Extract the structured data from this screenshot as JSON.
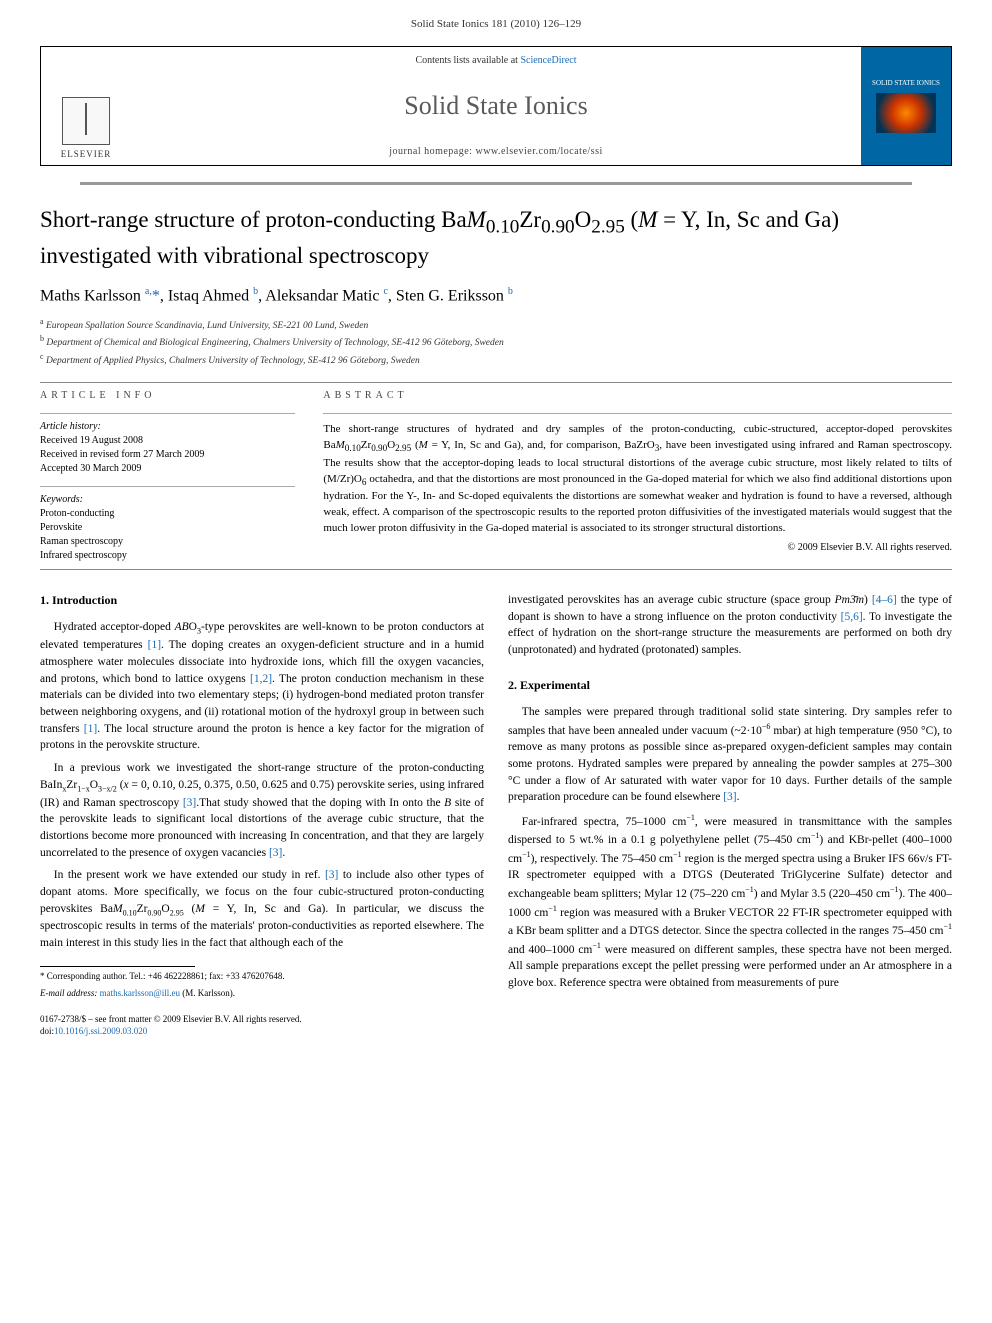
{
  "running_head": "Solid State Ionics 181 (2010) 126–129",
  "journal_box": {
    "contents_prefix": "Contents lists available at ",
    "contents_link": "ScienceDirect",
    "journal_name": "Solid State Ionics",
    "homepage_prefix": "journal homepage: ",
    "homepage_url": "www.elsevier.com/locate/ssi",
    "elsevier": "ELSEVIER",
    "cover_title": "SOLID STATE IONICS"
  },
  "title_html": "Short-range structure of proton-conducting Ba<em>M</em><sub>0.10</sub>Zr<sub>0.90</sub>O<sub>2.95</sub> (<em>M</em> = Y, In, Sc and Ga) investigated with vibrational spectroscopy",
  "authors_html": "Maths Karlsson <sup>a,</sup><span class='star'>*</span>, Istaq Ahmed <sup>b</sup>, Aleksandar Matic <sup>c</sup>, Sten G. Eriksson <sup>b</sup>",
  "affiliations": [
    "a  European Spallation Source Scandinavia, Lund University, SE-221 00 Lund, Sweden",
    "b  Department of Chemical and Biological Engineering, Chalmers University of Technology, SE-412 96 Göteborg, Sweden",
    "c  Department of Applied Physics, Chalmers University of Technology, SE-412 96 Göteborg, Sweden"
  ],
  "article_info": {
    "head": "ARTICLE INFO",
    "history_head": "Article history:",
    "history": [
      "Received 19 August 2008",
      "Received in revised form 27 March 2009",
      "Accepted 30 March 2009"
    ],
    "keywords_head": "Keywords:",
    "keywords": [
      "Proton-conducting",
      "Perovskite",
      "Raman spectroscopy",
      "Infrared spectroscopy"
    ]
  },
  "abstract": {
    "head": "ABSTRACT",
    "text_html": "The short-range structures of hydrated and dry samples of the proton-conducting, cubic-structured, acceptor-doped perovskites Ba<em>M</em><sub>0.10</sub>Zr<sub>0.90</sub>O<sub>2.95</sub> (<em>M</em> = Y, In, Sc and Ga), and, for comparison, BaZrO<sub>3</sub>, have been investigated using infrared and Raman spectroscopy. The results show that the acceptor-doping leads to local structural distortions of the average cubic structure, most likely related to tilts of (M/Zr)O<sub>6</sub> octahedra, and that the distortions are most pronounced in the Ga-doped material for which we also find additional distortions upon hydration. For the Y-, In- and Sc-doped equivalents the distortions are somewhat weaker and hydration is found to have a reversed, although weak, effect. A comparison of the spectroscopic results to the reported proton diffusivities of the investigated materials would suggest that the much lower proton diffusivity in the Ga-doped material is associated to its stronger structural distortions.",
    "copyright": "© 2009 Elsevier B.V. All rights reserved."
  },
  "body": {
    "s1_head": "1. Introduction",
    "s1_p1_html": "Hydrated acceptor-doped <em>AB</em>O<sub>3</sub>-type perovskites are well-known to be proton conductors at elevated temperatures <span class='cite'>[1]</span>. The doping creates an oxygen-deficient structure and in a humid atmosphere water molecules dissociate into hydroxide ions, which fill the oxygen vacancies, and protons, which bond to lattice oxygens <span class='cite'>[1,2]</span>. The proton conduction mechanism in these materials can be divided into two elementary steps; (i) hydrogen-bond mediated proton transfer between neighboring oxygens, and (ii) rotational motion of the hydroxyl group in between such transfers <span class='cite'>[1]</span>. The local structure around the proton is hence a key factor for the migration of protons in the perovskite structure.",
    "s1_p2_html": "In a previous work we investigated the short-range structure of the proton-conducting BaIn<sub>x</sub>Zr<sub>1−x</sub>O<sub>3−x/2</sub> (<em>x</em> = 0, 0.10, 0.25, 0.375, 0.50, 0.625 and 0.75) perovskite series, using infrared (IR) and Raman spectroscopy <span class='cite'>[3]</span>.That study showed that the doping with In onto the <em>B</em> site of the perovskite leads to significant local distortions of the average cubic structure, that the distortions become more pronounced with increasing In concentration, and that they are largely uncorrelated to the presence of oxygen vacancies <span class='cite'>[3]</span>.",
    "s1_p3_html": "In the present work we have extended our study in ref. <span class='cite'>[3]</span> to include also other types of dopant atoms. More specifically, we focus on the four cubic-structured proton-conducting perovskites Ba<em>M</em><sub>0.10</sub>Zr<sub>0.90</sub>O<sub>2.95</sub> (<em>M</em> = Y, In, Sc and Ga). In particular, we discuss the spectroscopic results in terms of the materials' proton-conductivities as reported elsewhere. The main interest in this study lies in the fact that although each of the",
    "col2_cont_html": "investigated perovskites has an average cubic structure (space group <em>Pm3̄m</em>) <span class='cite'>[4–6]</span> the type of dopant is shown to have a strong influence on the proton conductivity <span class='cite'>[5,6]</span>. To investigate the effect of hydration on the short-range structure the measurements are performed on both dry (unprotonated) and hydrated (protonated) samples.",
    "s2_head": "2. Experimental",
    "s2_p1_html": "The samples were prepared through traditional solid state sintering. Dry samples refer to samples that have been annealed under vacuum (~2·10<sup>−6</sup> mbar) at high temperature (950 °C), to remove as many protons as possible since as-prepared oxygen-deficient samples may contain some protons. Hydrated samples were prepared by annealing the powder samples at 275–300 °C under a flow of Ar saturated with water vapor for 10 days. Further details of the sample preparation procedure can be found elsewhere <span class='cite'>[3]</span>.",
    "s2_p2_html": "Far-infrared spectra, 75–1000 cm<sup>−1</sup>, were measured in transmittance with the samples dispersed to 5 wt.% in a 0.1 g polyethylene pellet (75–450 cm<sup>−1</sup>) and KBr-pellet (400–1000 cm<sup>−1</sup>), respectively. The 75–450 cm<sup>−1</sup> region is the merged spectra using a Bruker IFS 66v/s FT-IR spectrometer equipped with a DTGS (Deuterated TriGlycerine Sulfate) detector and exchangeable beam splitters; Mylar 12 (75–220 cm<sup>−1</sup>) and Mylar 3.5 (220–450 cm<sup>−1</sup>). The 400–1000 cm<sup>−1</sup> region was measured with a Bruker VECTOR 22 FT-IR spectrometer equipped with a KBr beam splitter and a DTGS detector. Since the spectra collected in the ranges 75–450 cm<sup>−1</sup> and 400–1000 cm<sup>−1</sup> were measured on different samples, these spectra have not been merged. All sample preparations except the pellet pressing were performed under an Ar atmosphere in a glove box. Reference spectra were obtained from measurements of pure"
  },
  "footnote": {
    "corr": "* Corresponding author. Tel.: +46 462228861; fax: +33 476207648.",
    "email_label": "E-mail address:",
    "email": "maths.karlsson@ill.eu",
    "email_who": " (M. Karlsson)."
  },
  "footer": {
    "line1": "0167-2738/$ – see front matter © 2009 Elsevier B.V. All rights reserved.",
    "doi_label": "doi:",
    "doi": "10.1016/j.ssi.2009.03.020"
  },
  "colors": {
    "link": "#1a6bb5",
    "cover_bg": "#0066a4",
    "rule": "#999999",
    "text": "#000000"
  }
}
